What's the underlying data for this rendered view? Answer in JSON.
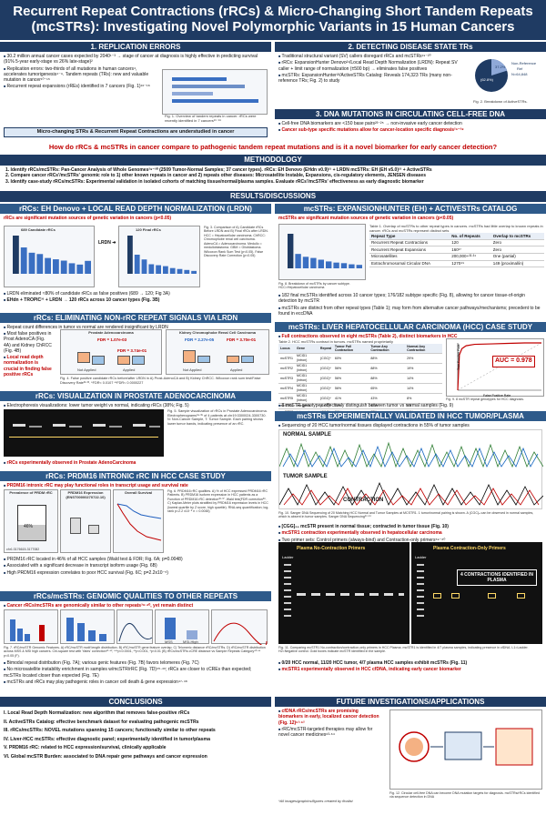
{
  "title": "Recurrent Repeat Contractions (rRCs) & Micro-Changing Short Tandem Repeats (mcSTRs): Investigating Novel Polymorphic Variants in 15 Human Cancers",
  "sec1": {
    "head": "1. REPLICATION ERRORS",
    "b1": "30.2 million annual cancer cases expected by 2040¹⁻³ → stage of cancer at diagnosis is highly effective in predicting survival (91% 5-year early-stage vs 26% late-stage)²",
    "b2": "Replication errors: two-thirds of all mutations in human cancers⁴, accelerates tumorigenesis⁴⁻⁹. Tandem repeats (TRs): new and valuable mutation in cancer¹⁰⁻¹⁵",
    "b3": "Recurrent repeat expansions (rREs) identified in 7 cancers (Fig. 1)¹⁶⁻¹⁸",
    "fig_caption": "Fig. 1. Overview of tandem repeats in cancer. rRCs were recently identified in 7 cancers¹⁶⁻¹⁸",
    "box": "Micro-changing STRs & Recurrent Repeat Contractions are understudied in cancer"
  },
  "sec2": {
    "head": "2. DETECTING DISEASE STATE TRs",
    "b1": "Traditional structural variant (SV) callers disregard rRCs and mcSTRs¹⁹⁻²⁰",
    "b2": "rRCs: ExpansionHunter Denovo²¹/Local Read Depth Normalization (LRDN): Repeat SV caller + limit range of normalization (±500 bp) → eliminates false positives",
    "b3": "mcSTRs: ExpansionHunter²²/ActiveSTRs Catalog: Reveals 174,323 TRs (many non-reference TRs; Fig. 2) to study",
    "pie_labels": [
      "Non-Reference",
      "Ref"
    ],
    "pie_n": "N=64,848",
    "pie_pct_a": "(62.8%)",
    "pie_pct_b": "37.2%",
    "fig_caption": "Fig. 2. Breakdown of ActiveSTRs."
  },
  "sec3": {
    "head": "3. DNA MUTATIONS IN CIRCULATING CELL-FREE DNA",
    "b1": "Cell-free DNA biomarkers are <150 base pairs²³⁻²⁵ → non-invasive early cancer detection",
    "b2": "Cancer sub-type specific mutations allow for cancer-location specific diagnosis²⁶⁻²⁸"
  },
  "question": "How do rRCs & mcSTRs in cancer compare to pathogenic tandem repeat mutations and is it a novel biomarker for early cancer detection?",
  "methodology": {
    "head": "METHODOLOGY",
    "m1": "1. Identify rRCs/mcSTRs: Pan-Cancer Analysis of Whole Genomes²⁹⁻³⁰ (2509 Tumor-Normal Samples; 37 cancer types). rRCs: EH Denovo (EHdn v0.9)²¹ + LRDN   mcSTRs: EH (EH v5.0)²² + ActiveSTRs",
    "m2": "2. Compare cancer rRCs'/mcSTRs' genomic role to 1) other known repeats in cancer and 2) repeats other diseases: Microsatellite Instable, Expansions, cis-regulatory elements, JENSEN diseases",
    "m3": "3. Identify case-study rRCs/mcSTRs: Experimental validation in isolated cohorts of matching tissue/normal/plasma samples. Evaluate rRCs'/mcSTRs' effectiveness as early diagnostic biomarker"
  },
  "results_head": "RESULTS/DISCUSSIONS",
  "left": {
    "s1_head": "rRCs: EH Denovo + LOCAL READ DEPTH NORMALIZATION (LRDN)",
    "s1_sub": "rRCs are significant mutation sources of genetic variation in cancers (p<0.05)",
    "s1_figA": "689 Candidate rRCs",
    "s1_figB": "120 Final rRCs",
    "s1_lrdn": "LRDN",
    "s1_caption": "Fig. 3. Comparison of A) Candidate rRCs Before LRDN and B) Final rRCs after LRDN. HCC = Hepatocellular carcinoma. ChRCC: Chromophobe renal cell carcinoma. AdenoCA = Adenocarcinoma. Medullo = medulloblastoma. GBM = Glioblastoma. Wilcoxon Rank Sum Test (p<0.05). False Discovery Rate Correction (p<0.05)",
    "s1_b1": "LRDN eliminated ≈80% of candidate rRCs as false positives (689 → 120; Fig 3A)",
    "s1_b2": "EHdn + TROPIC³¹ + LRDN → 120 rRCs across 10 cancer types (Fig. 3B)",
    "s2_head": "rRCs: ELIMINATING NON-rRC REPEAT SIGNALS VIA LRDN",
    "s2_b1": "Repeat count differences in tumor vs normal are rendered insignificant by LRDN",
    "s2_b2": "Most false positives in Prost AdenoCA (Fig. 4A) and Kidney ChRCC (Fig. 4B)",
    "s2_b3": "Local read depth normalization is crucial in finding false positive rRCs",
    "s2_figA_title": "Prostate Adenocarcinoma",
    "s2_figB_title": "Kidney Chromophobe Renal Cell Carcinoma",
    "s2_fdrA1": "FDR = 1.07e-03",
    "s2_fdrA2": "FDR = 3.74e-01",
    "s2_fdrB1": "FDR = 2.27e-05",
    "s2_fdrB2": "FDR = 3.70e-01",
    "s2_xlabels": [
      "Not Applied",
      "Applied"
    ],
    "s2_xaxis": "Local Read Depth Normalization Status",
    "s2_caption": "Fig. 4. False positive candidate rRCs before/after LRDN in A) Prost-AdenoCA and B) Kidney ChRCC. Wilcoxon rank sum test/False Discovery Rate³²·³³. *FDR< 0.0107 **FDR< 0.0000227",
    "s3_head": "rRCs: VISUALIZATION IN PROSTATE ADENOCARCINOMA",
    "s3_b1": "Electrophoresis visualizations: lower tumor weight vs normal, indicating rRCs (38%; Fig. 5)",
    "s3_caption": "Fig. 5. Sample visualization of rRCs in Prostate Adenocarcinoma. Electropherograms³⁴·³⁵ of 4 patients at chr19:3300024-3300730. N: Non-Cancer Sample, T: Tumor Sample. Each pairing shows lower tumor bands, indicating presence of an rRC.",
    "s3_b2": "rRCs experimentally observed in Prostate AdenoCarcinoma",
    "s4_head": "rRCs: PRDM16 INTRONIC rRC IN HCC CASE STUDY",
    "s4_sub": "PRDM16 intronic rRC may play functional roles in transcript usage and survival rate",
    "s4_figA": "Prevalence of PRDM rRC",
    "s4_pct": "46%",
    "s4_figB": "PRDM16 Expression (ENST00000270722.10)",
    "s4_figC": "Overall Survival",
    "s4_locus": "chr1:3176615-3177082",
    "s4_caption": "Fig. 6. PRDM16 rRC qualities. A) % of HCC expressed PRDM16 rRC Patients. B) PRDM16 isoform expression in HCC patients as a Function of PRDM16 rRC detection³⁶·³⁷. Wald test(FDR correction³⁸. C) Kaplan-Meier plots stratified by PRDM16 expression levels in HCC (lowest quartile by Z score, high quartile). RNA-seq quantification; log-rank p=2.2 x10⁻⁵ n = 0.0048)",
    "s4_b1": "PRDM16 rRC located in 46% of all HCC samples (Wald test & FDR; Fig. 6A; p=0.0048)",
    "s4_b2": "Associated with a significant decrease in transcript isoform usage (Fig. 6B)",
    "s4_b3": "High PRDM16 expression correlates to poor HCC survival (Fig. 6C; p=2.2x10⁻⁵)",
    "s5_head": "rRCs/mcSTRs: GENOMIC QUALITIES TO OTHER REPEATS",
    "s5_sub": "Cancer rRCs/mcSTRs are genomically similar to other repeats³⁹·⁴⁰, yet remain distinct",
    "s5_labels": [
      "MSS",
      "MSI-High"
    ],
    "s5_caption": "Fig. 7. rRC/mcSTR Genomic Features. A) rRC/mcSTR motif length distribution. B) rRC/mcSTR gene feature overlap. C) Telomeric distance rRC/mcSTRs. D) rRC/mcSTR distribution across MSS & MSI high cancers. Chi-square test with Yates' correction⁴¹·⁴², ***p<0.0001, **p<0.001, *p<0.01 (B) rRCs/mcSTRs cCRE distance vs Sample Repeats Category⁴³·⁴⁴ p<0.05 (F).",
    "s5_b1": "Bimodal repeat distribution (Fig. 7A); various genic features (Fig. 7B) favors telomeres (Fig. 7C)",
    "s5_b2": "No microsatellite instability enrichment in samples w/mcSTR/rRC (Fig. 7D)⁴⁵·⁴⁶; rRCs are closer to cCREs than expected; mcSTRs located closer than expected (Fig. 7E)",
    "s5_b3": "mcSTRs and rRCs may play pathogenic roles in cancer cell death & gene expression⁴⁷·⁴⁸"
  },
  "right": {
    "s1_head": "mcSTRs: EXPANSIONHUNTER (EH) + ACTIVESTRs CATALOG",
    "s1_sub": "mcSTRs are significant mutation sources of genetic variation in cancers (p<0.05)",
    "s1_table_caption": "Table 1. Overlap of mcSTRs to other repeat types in cancers. mcSTRs had little overlap to known repeats in cancer. rRCs and mcSTRs represent distinct sets",
    "t1_headers": [
      "Repeat Type",
      "No. of Repeats",
      "Overlap to mcSTRs"
    ],
    "t1_rows": [
      [
        "Recurrent Repeat Contractions",
        "120",
        "Zero"
      ],
      [
        "Recurrent Repeat Expansions",
        "160¹⁷",
        "Zero"
      ],
      [
        "Microsatellites",
        "200,000+³²·³⁴",
        "One (partial)"
      ],
      [
        "Extrachromosomal Circular DNA",
        "1270⁴⁹",
        "149 (proximal/in)"
      ]
    ],
    "s1_fig_caption": "Fig. 8. Breakdown of mcSTRs by cancer subtype. HCC=Hepatocellular carcinoma",
    "s1_b1": "182 final mcSTRs identified across 10 cancer types; 176/182 subtype specific (Fig. 8), allowing for cancer tissue-of-origin detection by mcSTR",
    "s1_b2": "mcSTRs are distinct from other repeat types (Table 1); may form from alternative cancer pathways/mechanisms; precedent to be found in eccDNA",
    "s2_head": "mcSTRs: LIVER HEPATOCELLULAR CARCINOMA (HCC) CASE STUDY",
    "s2_b1": "Full contractions observed in eight mcSTRs (Table 2), distinct biomarkers in HCC",
    "s2_table_caption": "Table 2. HCC mcSTRs contract in tumors. mcSTRs named proprietarily",
    "t2_headers": [
      "Locus",
      "Gene",
      "Repeat",
      "Tumor Full Contraction",
      "Tumor Any Contraction",
      "Normal Any Contraction"
    ],
    "t2_rows": [
      [
        "mcSTR1",
        "MCID1 (intron)",
        "(CGC)ⁿ",
        "60%",
        "88%",
        "29%"
      ],
      [
        "mcSTR2",
        "MCID1 (intron)",
        "(GGC)ⁿ",
        "56%",
        "88%",
        "19%"
      ],
      [
        "mcSTR3",
        "MCID1 (intron)",
        "(GGC)ⁿ",
        "56%",
        "88%",
        "14%"
      ],
      [
        "mcSTR4",
        "MCID1 (intron)",
        "(GGC)ⁿ",
        "56%",
        "65%",
        "14%"
      ],
      [
        "mcSTR5",
        "MCID1 (intron)",
        "(GGC)ⁿ",
        "41%",
        "43%",
        "8%"
      ],
      [
        "mcSTR6",
        "intergenic",
        "(GCC)ⁿ",
        "53%",
        "43%",
        "8%"
      ],
      [
        "mcSTR7",
        "intergenic",
        "(GCC)ⁿ",
        "39%",
        "77%",
        "14%"
      ],
      [
        "mcSTR8",
        "intergenic",
        "(GCC)ⁿ",
        "47%",
        "74%",
        "5%"
      ]
    ],
    "roc_auc": "AUC = 0.978",
    "roc_ylabel": "True Positive Rate",
    "roc_xlabel": "False Positive Rate",
    "roc_caption": "Fig. 9. 8 mcSTR repeat genotypes for HCC diagnosis.",
    "s2_b2": "8 mcSTR genotypes effectively distinguish between tumor vs normal samples (Fig. 9)",
    "s3_head": "mcSTRs EXPERIMENTALLY VALIDATED IN HCC TUMOR/PLASMA",
    "s3_b1": "Sequencing of 20 HCC tumor/normal tissues displayed contractions in 55% of tumor samples",
    "normal_label": "NORMAL SAMPLE",
    "tumor_label": "TUMOR SAMPLE",
    "contraction_label": "CONTRACTION",
    "s3_fig10_caption": "Fig. 10. Sanger DNA Sequencing of 20 Matching HCC Normal and Tumor Samples at MCSTR1. 1 tumor/normal pairing is shown. A (CGC)ₙ can be observed in normal samples, which is absent in tumor samples. Sanger DNA Sequencing⁵⁰·⁵¹",
    "s3_b2": "[CGG]₂₆ mcSTR present in normal tissue; contracted in tumor tissue (Fig. 10)",
    "s3_b3": "mcSTR1 contraction experimentally observed in hepatocellular carcinoma",
    "s3_b4": "Two primer sets: Control primers (always-bind) and Contraction-only primers⁵⁹⁻⁶⁰",
    "gel_left_title": "Plasma No-Contraction Primers",
    "gel_right_title": "Plasma Contraction-Only Primers",
    "ladder": "Ladder",
    "gel_callout": "4 CONTRACTIONS IDENTIFIED IN PLASMA",
    "s3_fig11_caption": "Fig. 11. Comparing mcSTR1 No-contraction/contraction-only primers in HCC Plasma. mcSTR1 is identified in 4/7 plasma samples, indicating presence in cfDNA. L1=Ladder. H2=Negative control. Gold boxes indicate mcSTR identified in the sample.",
    "s3_b5": "0/20 HCC normal, 11/20 HCC tumor, 4/7 plasma HCC samples exhibit mcSTRs (Fig. 11)",
    "s3_b6": "mcSTR1 experimentally observed in HCC cfDNA, indicating early cancer biomarker"
  },
  "conclusions": {
    "head": "CONCLUSIONS",
    "items": [
      "I. Local Read Depth Normalization: new algorithm that removes false-positive rRCs",
      "II. ActiveSTRs Catalog: effective benchmark dataset for evaluating pathogenic mcSTRs",
      "III. rRCs/mcSTRs: NOVEL mutations spanning 15 cancers; functionally similar to other repeats",
      "IV. Liver-HCC mcSTRs: effective diagnostic panel; experimentally identified in tumor/plasma",
      "V. PRDM16 rRC: related to HCC expression/survival, clinically applicable",
      "VI. Global mcSTR Burden: associated to DNA repair gene pathways and cancer expression"
    ]
  },
  "future": {
    "head": "FUTURE INVESTIGATIONS/APPLICATIONS",
    "b1": "cfDNA rRCs/mcSTRs are promising biomarkers in early, localized cancer detection (Fig. 12)⁶¹·⁶²",
    "b2": "rRC/mcSTR-targeted therapies may allow for novel cancer medicines⁶³·⁶⁴",
    "fig_caption": "Fig. 12. Circular cell-free DNA can become DNA mutation targets for diagnosis. mcSTRs/rRCs identified via sequence detection in DNA",
    "note": "*All images/graphics/figures created by finalist"
  },
  "colors": {
    "navy": "#1f3b63",
    "red": "#c00000",
    "blue": "#1f5fbf"
  },
  "chart_data": [
    {
      "type": "bar",
      "categories": [
        "Liver-HCC",
        "Kidney-ChRCC",
        "Prost-AdenoCA",
        "Panc-AdenoCA",
        "CNS-Medullo",
        "CNS-GBM",
        "Breast-AdenoCA",
        "Skin-Melanoma",
        "Lymph-BNHL",
        "Other"
      ],
      "values": [
        145,
        100,
        80,
        75,
        60,
        55,
        50,
        40,
        35,
        49
      ],
      "title": "689 Candidate rRCs"
    },
    {
      "type": "bar",
      "categories": [
        "Liver-HCC",
        "Kidney-ChRCC",
        "Prost-AdenoCA",
        "Panc-AdenoCA",
        "CNS-Medullo",
        "CNS-GBM",
        "Breast-AdenoCA",
        "Skin-Melanoma",
        "Lymph-BNHL",
        "Other"
      ],
      "values": [
        40,
        20,
        15,
        10,
        9,
        8,
        6,
        5,
        4,
        3
      ],
      "title": "120 Final rRCs"
    },
    {
      "type": "bar",
      "categories": [
        "Liver-HCC",
        "Kidney-RCC",
        "Prost-AdenoCA",
        "Panc-AdenoCA",
        "CNS-GBM",
        "Breast",
        "Skin",
        "Lymph",
        "Ovary",
        "Other"
      ],
      "values": [
        60,
        25,
        20,
        18,
        15,
        12,
        10,
        9,
        7,
        6
      ]
    },
    {
      "type": "pie",
      "categories": [
        "Non-Reference",
        "Ref"
      ],
      "values": [
        62.8,
        37.2
      ]
    },
    {
      "type": "line",
      "x": [
        0,
        0.02,
        0.05,
        0.1,
        0.2,
        0.4,
        0.6,
        0.8,
        1.0
      ],
      "y": [
        0,
        0.75,
        0.88,
        0.94,
        0.97,
        0.98,
        0.99,
        1.0,
        1.0
      ],
      "xlabel": "False Positive Rate",
      "ylabel": "True Positive Rate",
      "xlim": [
        0,
        1
      ],
      "ylim": [
        0,
        1
      ]
    }
  ]
}
